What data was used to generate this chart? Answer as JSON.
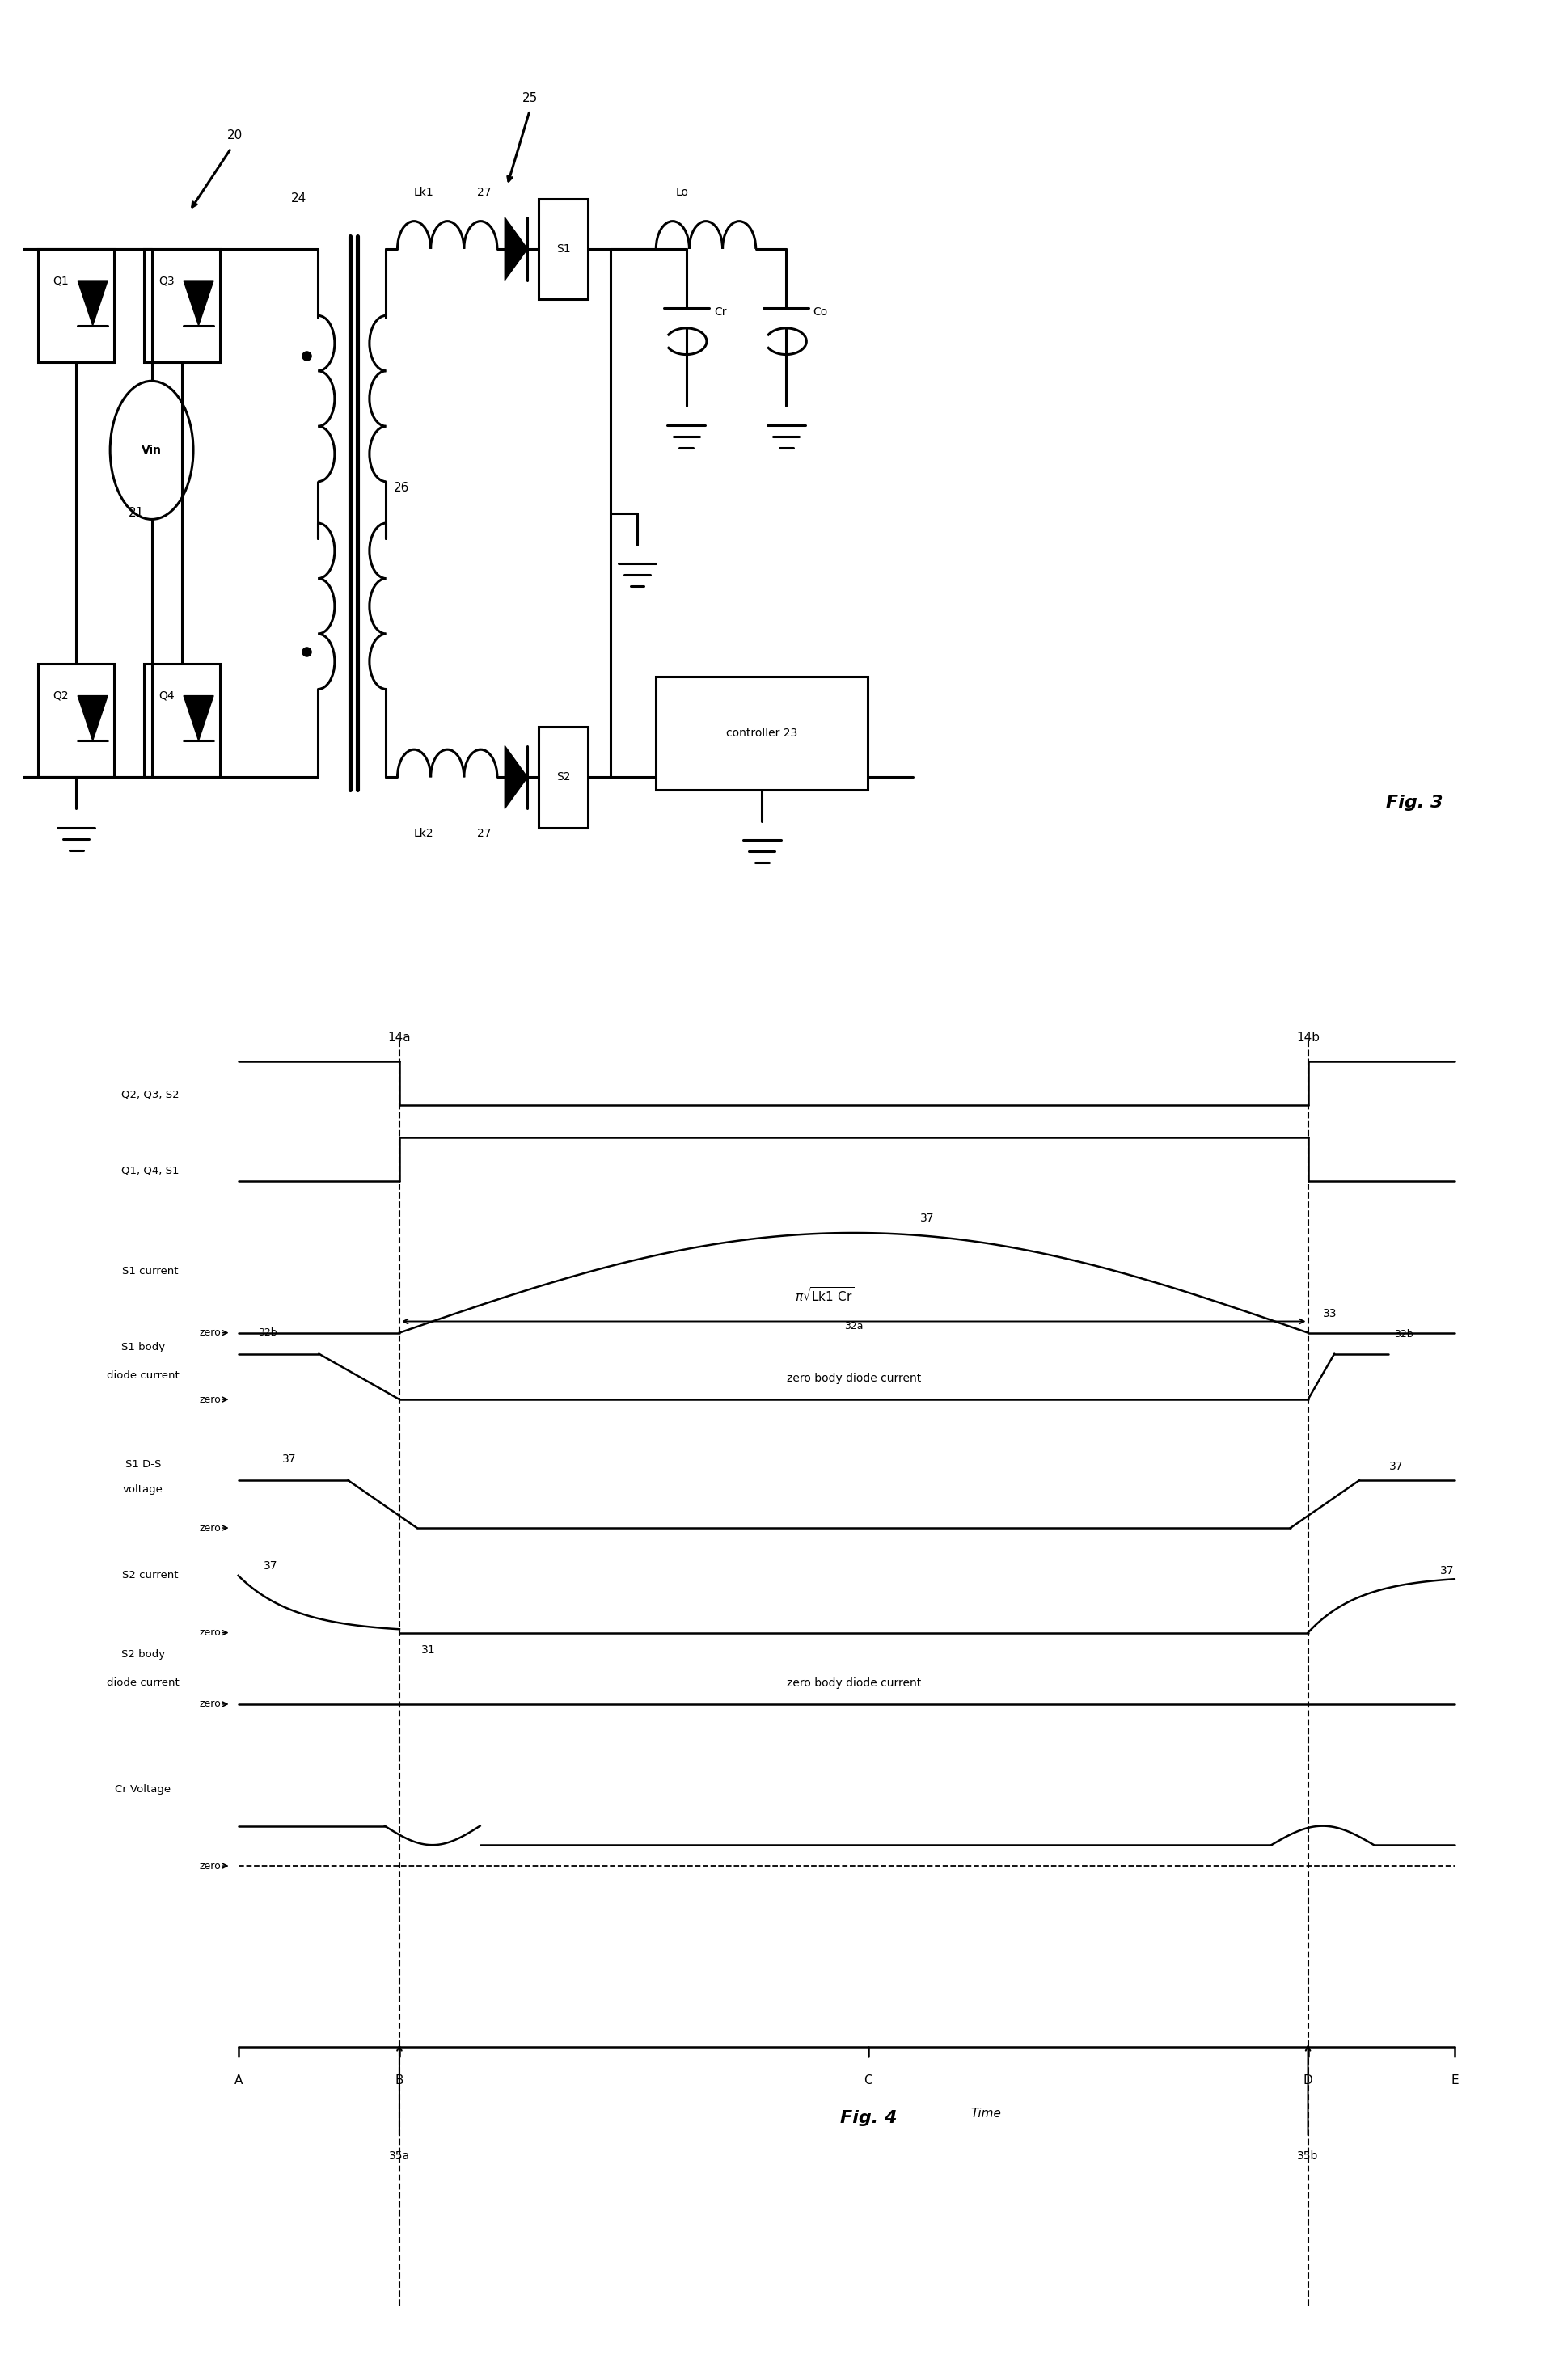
{
  "fig_width": 19.28,
  "fig_height": 29.44,
  "bg_color": "#ffffff",
  "circuit": {
    "vin": "Vin",
    "n20": "20",
    "n21": "21",
    "n24": "24",
    "n25": "25",
    "n26": "26",
    "lk1": "Lk1",
    "lk2": "Lk2",
    "n27a": "27",
    "n27b": "27",
    "s1": "S1",
    "s2": "S2",
    "lo": "Lo",
    "cr": "Cr",
    "co": "Co",
    "q1": "Q1",
    "q2": "Q2",
    "q3": "Q3",
    "q4": "Q4",
    "ctrl": "controller 23",
    "fig3": "Fig. 3"
  },
  "timing": {
    "q2q3s2": "Q2, Q3, S2",
    "q1q4s1": "Q1, Q4, S1",
    "s1curr": "S1 current",
    "s1body1": "S1 body",
    "s1body2": "diode current",
    "s1ds1": "S1 D-S",
    "s1ds2": "voltage",
    "s2curr": "S2 current",
    "s2body1": "S2 body",
    "s2body2": "diode current",
    "crvolt": "Cr Voltage",
    "zero": "zero",
    "n14a": "14a",
    "n14b": "14b",
    "n35a": "35a",
    "n35b": "35b",
    "tA": "A",
    "tB": "B",
    "tC": "C",
    "tD": "D",
    "tE": "E",
    "time": "Time",
    "fig4": "Fig. 4",
    "n37": "37",
    "n33": "33",
    "n31": "31",
    "n32a": "32a",
    "n32b": "32b",
    "pi_lk1cr": "π√Lk1 Cr",
    "zbdc": "zero body diode current"
  }
}
